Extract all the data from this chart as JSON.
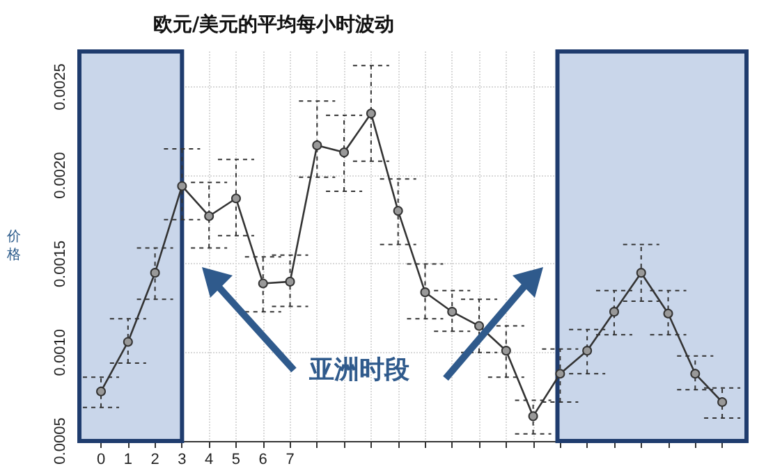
{
  "chart_data": {
    "type": "line",
    "title": "欧元/美元的平均每小时波动",
    "ylabel": "价格",
    "x": [
      0,
      1,
      2,
      3,
      4,
      5,
      6,
      7,
      8,
      9,
      10,
      11,
      12,
      13,
      14,
      15,
      16,
      17,
      18,
      19,
      20,
      21,
      22,
      23
    ],
    "series": [
      {
        "color": "#333333",
        "values": [
          0.00078,
          0.00106,
          0.00145,
          0.00194,
          0.00177,
          0.00187,
          0.00139,
          0.0014,
          0.00217,
          0.00213,
          0.00235,
          0.0018,
          0.00134,
          0.00123,
          0.00115,
          0.00101,
          0.00064,
          0.00088,
          0.00101,
          0.00123,
          0.00145,
          0.00122,
          0.00088,
          0.00072
        ],
        "errors": [
          [
            0.00069,
            0.00086
          ],
          [
            0.00094,
            0.00119
          ],
          [
            0.0013,
            0.00159
          ],
          [
            0.00175,
            0.00215
          ],
          [
            0.00159,
            0.00196
          ],
          [
            0.00166,
            0.00209
          ],
          [
            0.00123,
            0.00154
          ],
          [
            0.00126,
            0.00155
          ],
          [
            0.00199,
            0.00242
          ],
          [
            0.00191,
            0.00234
          ],
          [
            0.00208,
            0.00262
          ],
          [
            0.00161,
            0.00198
          ],
          [
            0.00119,
            0.0015
          ],
          [
            0.00112,
            0.00135
          ],
          [
            0.001,
            0.0013
          ],
          [
            0.00086,
            0.00115
          ],
          [
            0.00054,
            0.00073
          ],
          [
            0.00072,
            0.00102
          ],
          [
            0.00088,
            0.00113
          ],
          [
            0.0011,
            0.00135
          ],
          [
            0.00129,
            0.00161
          ],
          [
            0.0011,
            0.00135
          ],
          [
            0.00079,
            0.00098
          ],
          [
            0.00063,
            0.0008
          ]
        ]
      }
    ],
    "xlim": [
      -0.8,
      23.9
    ],
    "xticks": [
      0,
      1,
      2,
      3,
      4,
      5,
      6,
      7,
      {
        "value": 8,
        "label": null
      },
      {
        "value": 9,
        "label": null
      },
      {
        "value": 10,
        "label": null
      },
      {
        "value": 11,
        "label": null
      },
      {
        "value": 12,
        "label": null
      },
      {
        "value": 13,
        "label": null
      },
      {
        "value": 14,
        "label": null
      },
      {
        "value": 15,
        "label": null
      },
      {
        "value": 16,
        "label": null
      },
      {
        "value": 17,
        "label": null
      },
      {
        "value": 18,
        "label": null
      },
      {
        "value": 19,
        "label": null
      },
      {
        "value": 20,
        "label": null
      },
      {
        "value": 21,
        "label": null
      },
      {
        "value": 22,
        "label": null
      },
      {
        "value": 23,
        "label": null
      }
    ],
    "ylim": [
      0.0005,
      0.0027
    ],
    "yticks": [
      {
        "value": 0.0005,
        "label": "0.0005"
      },
      {
        "value": 0.001,
        "label": "0.0010"
      },
      {
        "value": 0.0015,
        "label": "0.0015"
      },
      {
        "value": 0.002,
        "label": "0.0020"
      },
      {
        "value": 0.0025,
        "label": "0.0025"
      }
    ],
    "bands": [
      {
        "axis": "x",
        "from": -0.8,
        "to": 3,
        "color": "#c9d6ea"
      },
      {
        "axis": "x",
        "from": 16.9,
        "to": 23.9,
        "color": "#c9d6ea"
      }
    ],
    "annotations": [
      "亚洲时段"
    ],
    "grid": true,
    "marker": "circle",
    "line_style": "solid"
  }
}
